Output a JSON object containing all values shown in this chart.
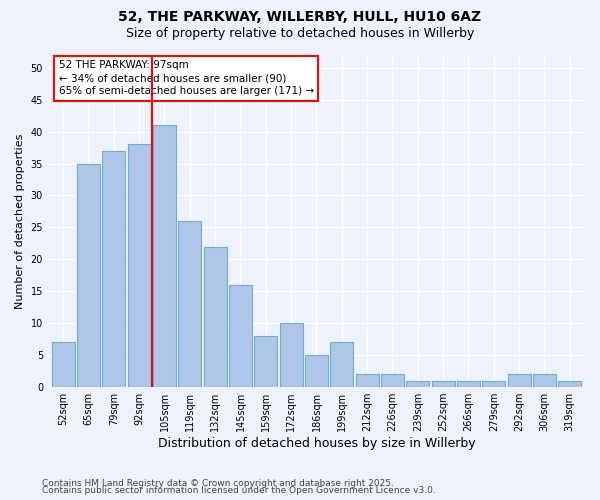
{
  "title1": "52, THE PARKWAY, WILLERBY, HULL, HU10 6AZ",
  "title2": "Size of property relative to detached houses in Willerby",
  "xlabel": "Distribution of detached houses by size in Willerby",
  "ylabel": "Number of detached properties",
  "categories": [
    "52sqm",
    "65sqm",
    "79sqm",
    "92sqm",
    "105sqm",
    "119sqm",
    "132sqm",
    "145sqm",
    "159sqm",
    "172sqm",
    "186sqm",
    "199sqm",
    "212sqm",
    "226sqm",
    "239sqm",
    "252sqm",
    "266sqm",
    "279sqm",
    "292sqm",
    "306sqm",
    "319sqm"
  ],
  "values": [
    7,
    35,
    37,
    38,
    41,
    26,
    22,
    16,
    8,
    10,
    5,
    7,
    2,
    2,
    1,
    1,
    1,
    1,
    2,
    2,
    1
  ],
  "bar_color": "#aec6e8",
  "bar_edge_color": "#6baed6",
  "red_line_index": 3.5,
  "annotation_line1": "52 THE PARKWAY: 97sqm",
  "annotation_line2": "← 34% of detached houses are smaller (90)",
  "annotation_line3": "65% of semi-detached houses are larger (171) →",
  "annotation_box_color": "white",
  "annotation_box_edge": "red",
  "ylim": [
    0,
    52
  ],
  "yticks": [
    0,
    5,
    10,
    15,
    20,
    25,
    30,
    35,
    40,
    45,
    50
  ],
  "footnote1": "Contains HM Land Registry data © Crown copyright and database right 2025.",
  "footnote2": "Contains public sector information licensed under the Open Government Licence v3.0.",
  "background_color": "#eef2fa",
  "grid_color": "white",
  "title_fontsize": 10,
  "subtitle_fontsize": 9,
  "xlabel_fontsize": 9,
  "ylabel_fontsize": 8,
  "tick_fontsize": 7,
  "footnote_fontsize": 6.5
}
